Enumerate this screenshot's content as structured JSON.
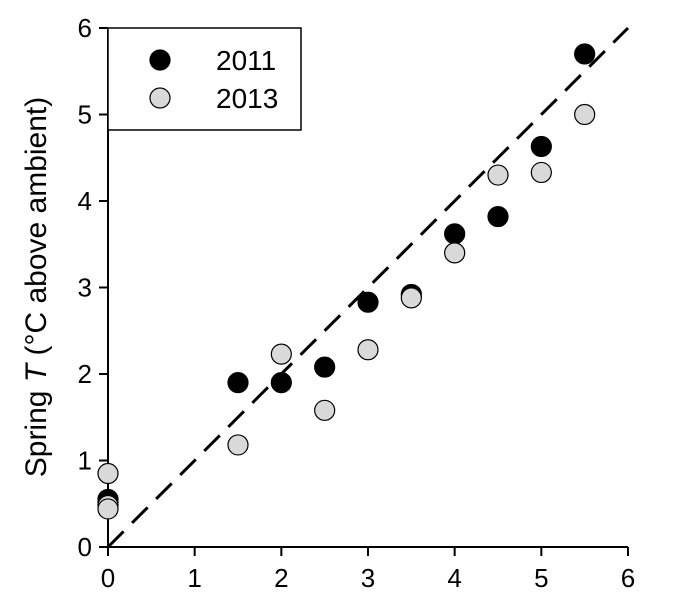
{
  "chart_data": {
    "type": "scatter",
    "title": "",
    "xlabel": "",
    "ylabel": {
      "prefix": "Spring ",
      "var": "T",
      "suffix": " (°C above ambient)"
    },
    "xlim": [
      0,
      6
    ],
    "ylim": [
      0,
      6
    ],
    "xticks": [
      "0",
      "1",
      "2",
      "3",
      "4",
      "5",
      "6"
    ],
    "yticks": [
      "0",
      "1",
      "2",
      "3",
      "4",
      "5",
      "6"
    ],
    "grid": false,
    "legend": {
      "position": "top-left",
      "boxed": true
    },
    "reference_line": {
      "type": "1:1",
      "style": "dashed",
      "color": "#000000",
      "from": [
        0,
        0
      ],
      "to": [
        6,
        6
      ]
    },
    "series": [
      {
        "name": "2011",
        "fill": "#000000",
        "stroke": "#000000",
        "points": [
          {
            "x": 0,
            "y": 0.55
          },
          {
            "x": 0,
            "y": 0.52
          },
          {
            "x": 1.5,
            "y": 1.9
          },
          {
            "x": 2,
            "y": 1.9
          },
          {
            "x": 2.5,
            "y": 2.08
          },
          {
            "x": 3,
            "y": 2.83
          },
          {
            "x": 3.5,
            "y": 2.92
          },
          {
            "x": 4,
            "y": 3.62
          },
          {
            "x": 4.5,
            "y": 3.82
          },
          {
            "x": 5,
            "y": 4.63
          },
          {
            "x": 5.5,
            "y": 5.7
          }
        ]
      },
      {
        "name": "2013",
        "fill": "#d9d9d9",
        "stroke": "#000000",
        "points": [
          {
            "x": 0,
            "y": 0.85
          },
          {
            "x": 0,
            "y": 0.48
          },
          {
            "x": 0,
            "y": 0.44
          },
          {
            "x": 1.5,
            "y": 1.18
          },
          {
            "x": 2,
            "y": 2.23
          },
          {
            "x": 2.5,
            "y": 1.58
          },
          {
            "x": 3,
            "y": 2.28
          },
          {
            "x": 3.5,
            "y": 2.88
          },
          {
            "x": 4,
            "y": 3.4
          },
          {
            "x": 4.5,
            "y": 4.3
          },
          {
            "x": 5,
            "y": 4.33
          },
          {
            "x": 5.5,
            "y": 5.0
          }
        ]
      }
    ]
  }
}
